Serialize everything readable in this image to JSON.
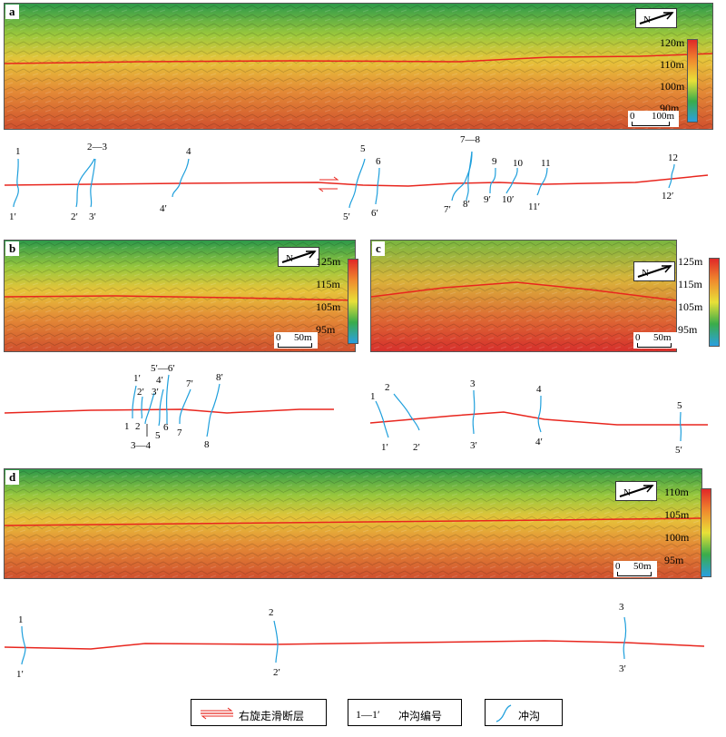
{
  "panels": {
    "a": {
      "label": "a",
      "colorbar_ticks": [
        "120m",
        "110m",
        "100m",
        "90m"
      ],
      "scale": {
        "start": "0",
        "end": "100m"
      },
      "gullies": [
        {
          "top": "1",
          "bottom": "1′"
        },
        {
          "top": "2—3",
          "bottom": "2′"
        },
        {
          "top": "",
          "bottom": "3′"
        },
        {
          "top": "4",
          "bottom": "4′"
        },
        {
          "top": "5",
          "bottom": "5′"
        },
        {
          "top": "6",
          "bottom": "6′"
        },
        {
          "top": "7—8",
          "bottom": "7′"
        },
        {
          "top": "",
          "bottom": "8′"
        },
        {
          "top": "9",
          "bottom": "9′"
        },
        {
          "top": "10",
          "bottom": "10′"
        },
        {
          "top": "11",
          "bottom": "11′"
        },
        {
          "top": "12",
          "bottom": "12′"
        }
      ]
    },
    "b": {
      "label": "b",
      "colorbar_ticks": [
        "125m",
        "115m",
        "105m",
        "95m"
      ],
      "scale": {
        "start": "0",
        "end": "50m"
      },
      "gullies_top": [
        "1′",
        "2′",
        "3′",
        "4′",
        "5′—6′",
        "7′",
        "8′"
      ],
      "gullies_bottom": [
        "1",
        "2",
        "3—4",
        "5",
        "6",
        "7",
        "8"
      ]
    },
    "c": {
      "label": "c",
      "colorbar_ticks": [
        "125m",
        "115m",
        "105m",
        "95m"
      ],
      "scale": {
        "start": "0",
        "end": "50m"
      },
      "gullies": [
        {
          "top": "1",
          "bottom": "1′"
        },
        {
          "top": "2",
          "bottom": "2′"
        },
        {
          "top": "3",
          "bottom": "3′"
        },
        {
          "top": "4",
          "bottom": "4′"
        },
        {
          "top": "5",
          "bottom": "5′"
        }
      ]
    },
    "d": {
      "label": "d",
      "colorbar_ticks": [
        "110m",
        "105m",
        "100m",
        "95m"
      ],
      "scale": {
        "start": "0",
        "end": "50m"
      },
      "gullies": [
        {
          "top": "1",
          "bottom": "1′"
        },
        {
          "top": "2",
          "bottom": "2′"
        },
        {
          "top": "3",
          "bottom": "3′"
        }
      ]
    }
  },
  "legend": {
    "fault_label": "右旋走滑断层",
    "gully_number_symbol": "1—1′",
    "gully_number_label": "冲沟编号",
    "gully_label": "冲沟"
  },
  "colors": {
    "fault": "#e8261e",
    "gully": "#1e9fdc",
    "dem_low": "#e8402a",
    "dem_mid": "#f0c830",
    "dem_high": "#3aa84a"
  }
}
